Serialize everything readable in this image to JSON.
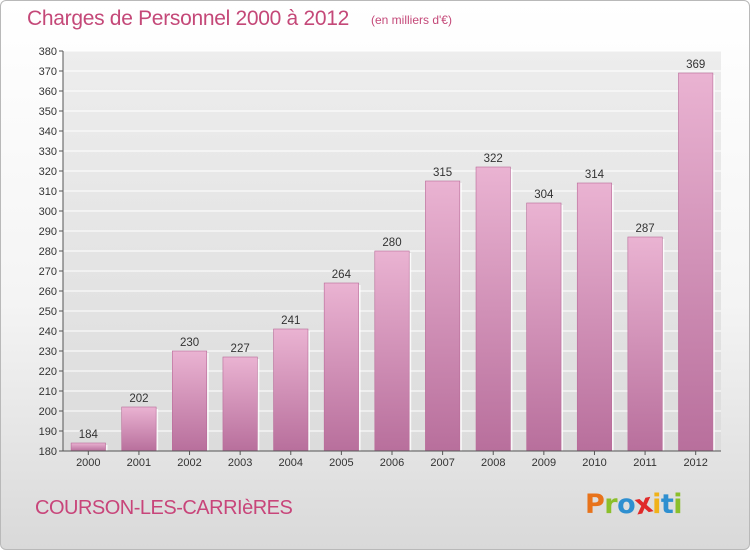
{
  "header": {
    "title": "Charges de Personnel 2000 à 2012",
    "subtitle": "(en milliers d'€)"
  },
  "footer": {
    "commune": "COURSON-LES-CARRIèRES",
    "logo_letters": [
      {
        "ch": "P",
        "color": "#e8731b"
      },
      {
        "ch": "r",
        "color": "#8bbf2a"
      },
      {
        "ch": "o",
        "color": "#2e8fd0"
      },
      {
        "ch": "x",
        "color": "#e02a2a"
      },
      {
        "ch": "i",
        "color": "#f0b21a"
      },
      {
        "ch": "t",
        "color": "#2e8fd0"
      },
      {
        "ch": "i",
        "color": "#8bbf2a"
      }
    ]
  },
  "colors": {
    "bar_light": "#eab3d2",
    "bar_dark": "#c47aa4",
    "bar_edge": "#b86a98",
    "grid": "#ffffff",
    "title": "#c44878"
  },
  "chart_data": {
    "type": "bar",
    "title": "Charges de Personnel 2000 à 2012",
    "subtitle": "(en milliers d'€)",
    "categories": [
      "2000",
      "2001",
      "2002",
      "2003",
      "2004",
      "2005",
      "2006",
      "2007",
      "2008",
      "2009",
      "2010",
      "2011",
      "2012"
    ],
    "values": [
      184,
      202,
      230,
      227,
      241,
      264,
      280,
      315,
      322,
      304,
      314,
      287,
      369
    ],
    "ylim": [
      180,
      380
    ],
    "ytick_step": 10,
    "grid": true,
    "xlabel": "",
    "ylabel": ""
  }
}
